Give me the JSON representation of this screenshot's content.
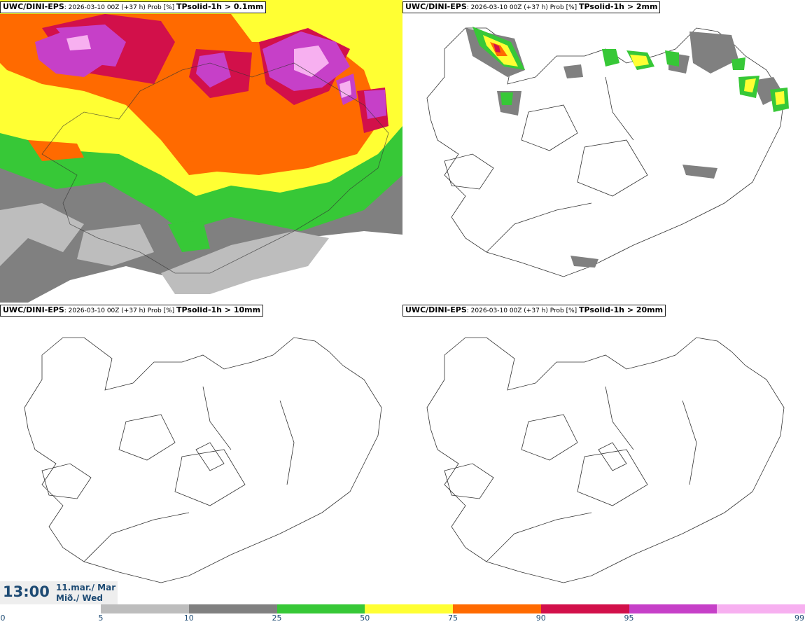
{
  "panels": [
    {
      "model": "UWC/DINI-EPS",
      "run": "2026-03-10 00Z (+37 h) Prob [%]",
      "param": "TPsolid-1h > 0.1mm"
    },
    {
      "model": "UWC/DINI-EPS",
      "run": "2026-03-10 00Z (+37 h) Prob [%]",
      "param": "TPsolid-1h > 2mm"
    },
    {
      "model": "UWC/DINI-EPS",
      "run": "2026-03-10 00Z (+37 h) Prob [%]",
      "param": "TPsolid-1h > 10mm"
    },
    {
      "model": "UWC/DINI-EPS",
      "run": "2026-03-10 00Z (+37 h) Prob [%]",
      "param": "TPsolid-1h > 20mm"
    }
  ],
  "valid_time": {
    "time": "13:00",
    "date_line1": "11.mar./ Mar",
    "date_line2": "Mið./ Wed"
  },
  "legend": {
    "ticks": [
      "0",
      "5",
      "10",
      "25",
      "50",
      "75",
      "90",
      "95",
      "99"
    ],
    "colors": [
      "#bdbdbd",
      "#808080",
      "#37c837",
      "#ffff33",
      "#ff6a00",
      "#d2104a",
      "#c640c8",
      "#f7b0f0"
    ]
  }
}
